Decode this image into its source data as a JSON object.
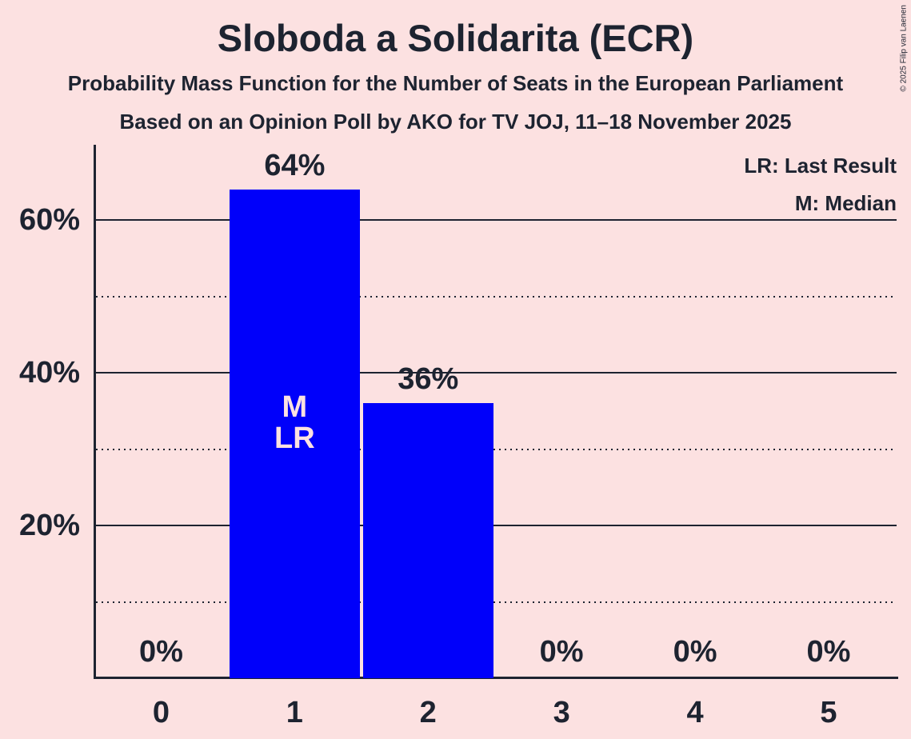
{
  "title": "Sloboda a Solidarita (ECR)",
  "subtitle1": "Probability Mass Function for the Number of Seats in the European Parliament",
  "subtitle2": "Based on an Opinion Poll by AKO for TV JOJ, 11–18 November 2025",
  "copyright": "© 2025 Filip van Laenen",
  "legend": {
    "lr": "LR: Last Result",
    "m": "M: Median"
  },
  "colors": {
    "background": "#fce1e1",
    "bar": "#0000fa",
    "text": "#1d2330",
    "bar_label": "#fce1e1"
  },
  "chart_data": {
    "type": "bar",
    "title": "Sloboda a Solidarita (ECR)",
    "xlabel": "",
    "ylabel": "",
    "categories": [
      "0",
      "1",
      "2",
      "3",
      "4",
      "5"
    ],
    "values": [
      0,
      64,
      36,
      0,
      0,
      0
    ],
    "value_labels": [
      "0%",
      "64%",
      "36%",
      "0%",
      "0%",
      "0%"
    ],
    "ylim": [
      0,
      70
    ],
    "yticks_solid": [
      20,
      40,
      60
    ],
    "ytick_labels": [
      "20%",
      "40%",
      "60%"
    ],
    "yticks_dotted": [
      10,
      30,
      50
    ],
    "grid": true,
    "legend_position": "top-right",
    "median_seats": "1",
    "last_result_seats": "1",
    "annotations": [
      {
        "category": "1",
        "lines": [
          "M",
          "LR"
        ]
      }
    ]
  }
}
